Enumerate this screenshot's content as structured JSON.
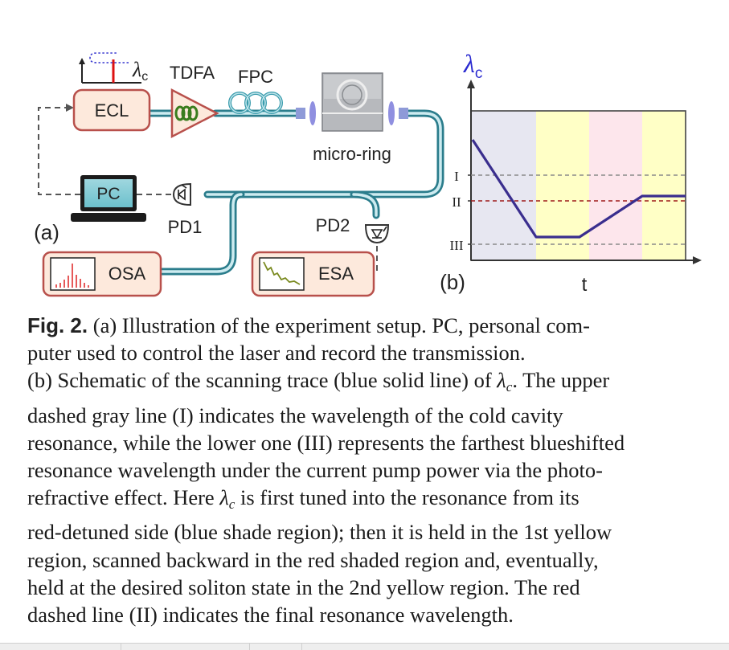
{
  "panel_a": {
    "label": "(a)",
    "lambda_symbol": "λ",
    "lambda_subscript": "c",
    "components": {
      "ecl": "ECL",
      "tdfa": "TDFA",
      "fpc": "FPC",
      "micro_ring": "micro-ring",
      "pc": "PC",
      "pd1": "PD1",
      "pd2": "PD2",
      "osa": "OSA",
      "esa": "ESA"
    }
  },
  "panel_b": {
    "label": "(b)",
    "y_label_symbol": "λ",
    "y_label_subscript": "c",
    "x_label": "t",
    "level_labels": [
      "I",
      "II",
      "III"
    ]
  },
  "colors": {
    "blue_region": "#e7e7f1",
    "yellow_region": "#ffffc6",
    "red_region": "#fde6ec",
    "trace": "#3a2e8e",
    "level_gray": "#8a8a8a",
    "level_red": "#9e1a1a",
    "fiber": "#3a9cad",
    "fiber_light": "#bfe4ea",
    "box_fill": "#fde9dc",
    "box_stroke": "#b8504b",
    "amp_green": "#3a7d1e",
    "lambda_blue": "#2a2ad0"
  },
  "caption": {
    "fig_label": "Fig. 2.",
    "lines": [
      " (a) Illustration of the experiment setup. PC, personal com-",
      "puter used to control the laser and record the transmission.",
      "(b) Schematic of the scanning trace (blue solid line) of ",
      "dashed gray line (I) indicates the wavelength of the cold cavity",
      "resonance, while the lower one (III) represents the farthest blueshifted",
      "resonance wavelength under the current pump power via the photo-",
      "refractive effect. Here ",
      "red-detuned side (blue shade region); then it is held in the 1st yellow",
      "region, scanned backward in the red shaded region and, eventually,",
      "held at the desired soliton state in the 2nd yellow region. The red",
      "dashed line (II) indicates the final resonance wavelength."
    ],
    "lambda": "λ",
    "lambda_sub": "c",
    "line3_tail": ". The upper",
    "line7_tail": " is first tuned into the resonance from its"
  }
}
